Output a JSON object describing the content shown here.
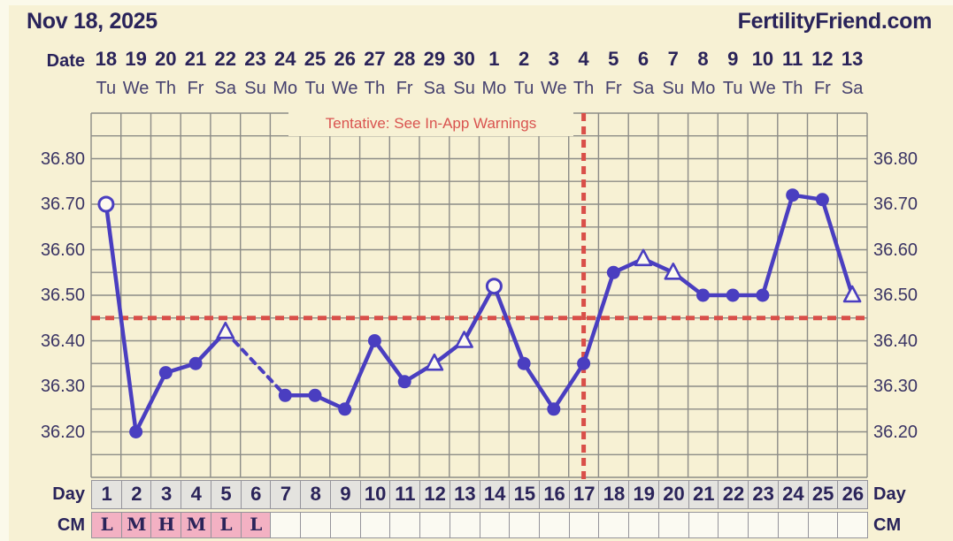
{
  "header": {
    "title": "Nov 18, 2025",
    "brand": "FertilityFriend.com"
  },
  "warning": "Tentative: See In-App Warnings",
  "date_axis": {
    "label": "Date",
    "dates": [
      "18",
      "19",
      "20",
      "21",
      "22",
      "23",
      "24",
      "25",
      "26",
      "27",
      "28",
      "29",
      "30",
      "1",
      "2",
      "3",
      "4",
      "5",
      "6",
      "7",
      "8",
      "9",
      "10",
      "11",
      "12",
      "13"
    ],
    "weekdays": [
      "Tu",
      "We",
      "Th",
      "Fr",
      "Sa",
      "Su",
      "Mo",
      "Tu",
      "We",
      "Th",
      "Fr",
      "Sa",
      "Su",
      "Mo",
      "Tu",
      "We",
      "Th",
      "Fr",
      "Sa",
      "Su",
      "Mo",
      "Tu",
      "We",
      "Th",
      "Fr",
      "Sa"
    ]
  },
  "y_axis": {
    "tick_labels": [
      "36.80",
      "36.70",
      "36.60",
      "36.50",
      "36.40",
      "36.30",
      "36.20"
    ]
  },
  "day_axis": {
    "label": "Day",
    "days": [
      "1",
      "2",
      "3",
      "4",
      "5",
      "6",
      "7",
      "8",
      "9",
      "10",
      "11",
      "12",
      "13",
      "14",
      "15",
      "16",
      "17",
      "18",
      "19",
      "20",
      "21",
      "22",
      "23",
      "24",
      "25",
      "26"
    ]
  },
  "cm_row": {
    "label": "CM",
    "values": [
      "L",
      "M",
      "H",
      "M",
      "L",
      "L",
      "",
      "",
      "",
      "",
      "",
      "",
      "",
      "",
      "",
      "",
      "",
      "",
      "",
      "",
      "",
      "",
      "",
      "",
      "",
      ""
    ]
  },
  "chart_data": {
    "type": "line",
    "title": "Basal body temperature chart",
    "x_days": [
      1,
      2,
      3,
      4,
      5,
      6,
      7,
      8,
      9,
      10,
      11,
      12,
      13,
      14,
      15,
      16,
      17,
      18,
      19,
      20,
      21,
      22,
      23,
      24,
      25,
      26
    ],
    "series": [
      {
        "name": "temperature",
        "values": [
          36.7,
          36.2,
          36.33,
          36.35,
          36.42,
          null,
          36.28,
          36.28,
          36.25,
          36.4,
          36.31,
          36.35,
          36.4,
          36.52,
          36.35,
          36.25,
          36.35,
          36.55,
          36.58,
          36.55,
          36.5,
          36.5,
          36.5,
          36.72,
          36.71,
          36.5
        ],
        "markers": [
          "open-circle",
          "dot",
          "dot",
          "dot",
          "open-triangle",
          null,
          "dot",
          "dot",
          "dot",
          "dot",
          "dot",
          "open-triangle",
          "open-triangle",
          "open-circle",
          "dot",
          "dot",
          "dot",
          "dot",
          "open-triangle",
          "open-triangle",
          "dot",
          "dot",
          "dot",
          "dot",
          "dot",
          "open-triangle"
        ]
      }
    ],
    "ylim": [
      36.1,
      36.9
    ],
    "grid_step": 0.05,
    "y_tick_values": [
      36.8,
      36.7,
      36.6,
      36.5,
      36.4,
      36.3,
      36.2
    ],
    "coverline_temp": 36.45,
    "ovulation_line_day": 17,
    "missing_days": [
      6
    ],
    "grid_on": true,
    "colors": {
      "line": "#4a3ec0",
      "open_marker_fill": "#fdfaef",
      "dashed_red": "#d94f49",
      "grid": "#8c8c87",
      "warning_text": "#d9534f",
      "day_cell_bg": "#e4e3df",
      "cm_pink": "#f3b1c3",
      "background": "#f7f1d4"
    }
  }
}
